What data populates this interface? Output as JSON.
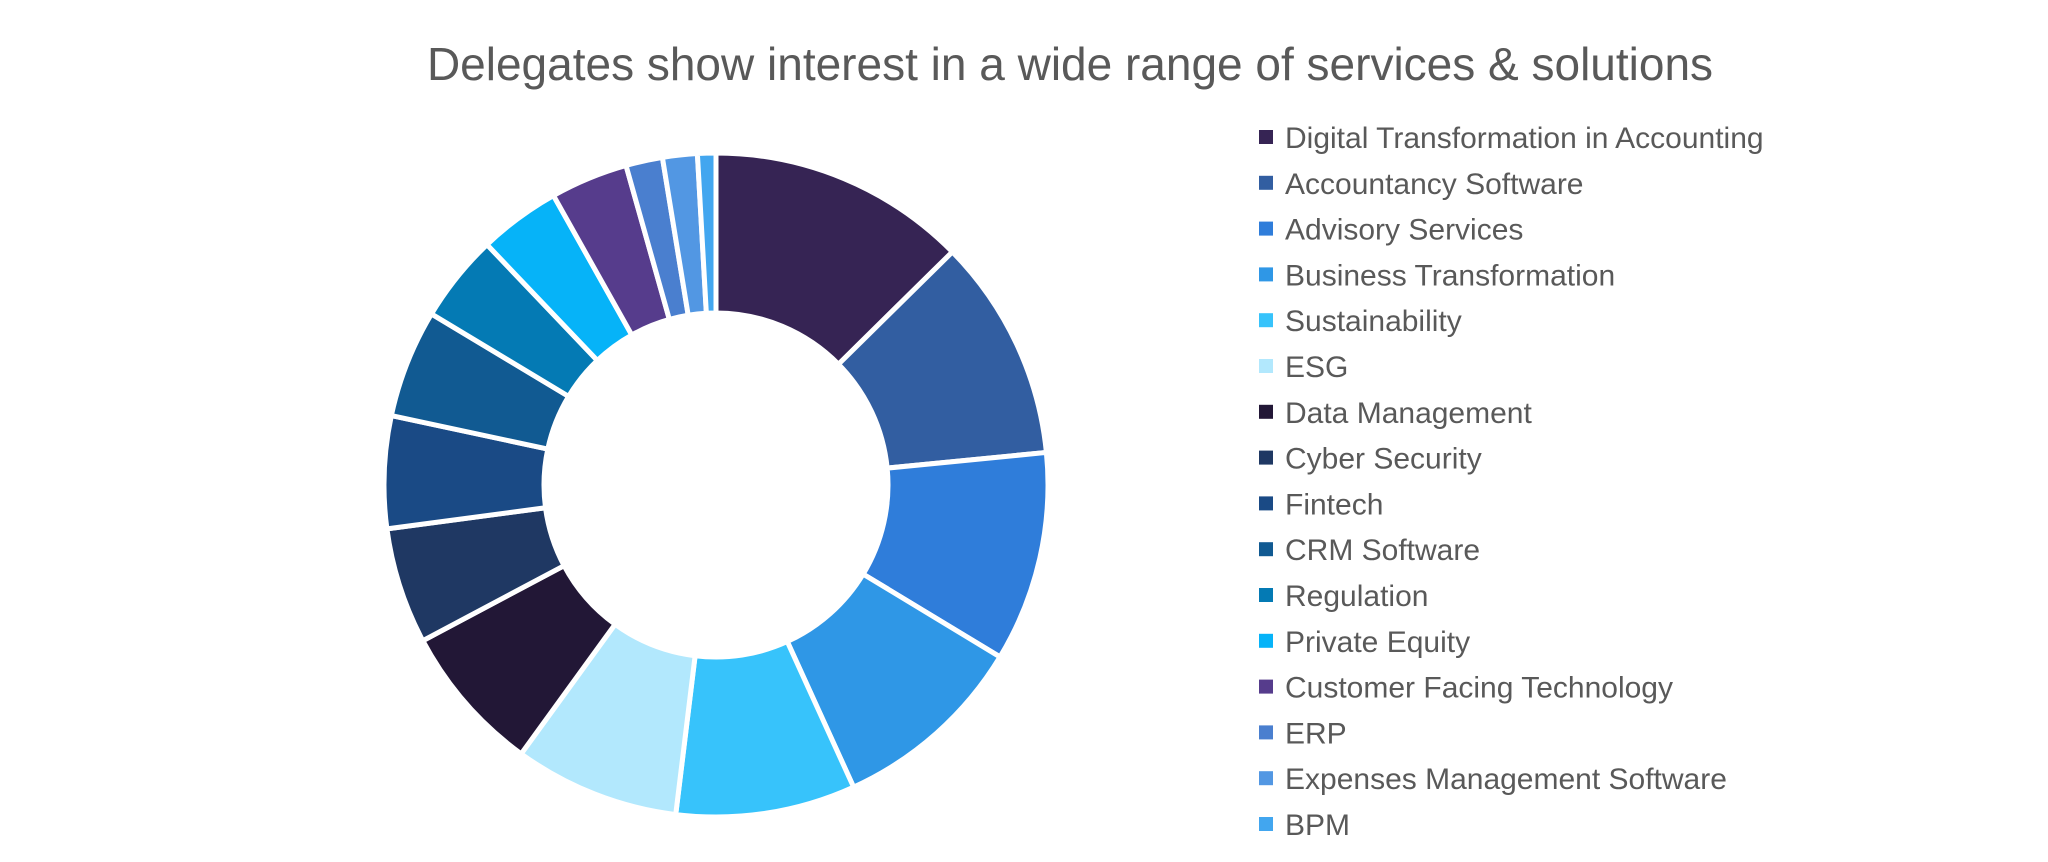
{
  "chart_data": {
    "type": "pie",
    "variant": "doughnut",
    "title": "Delegates show interest in a wide range of services & solutions",
    "legend_position": "right",
    "categories": [
      "Digital Transformation in Accounting",
      "Accountancy Software",
      "Advisory Services",
      "Business Transformation",
      "Sustainability",
      "ESG",
      "Data Management",
      "Cyber Security",
      "Fintech",
      "CRM Software",
      "Regulation",
      "Private Equity",
      "Customer Facing Technology",
      "ERP",
      "Expenses Management Software",
      "BPM"
    ],
    "values": [
      12.7,
      10.9,
      10.3,
      9.6,
      8.8,
      8.1,
      7.3,
      5.7,
      5.5,
      5.3,
      4.3,
      4.0,
      3.8,
      1.8,
      1.7,
      0.9
    ],
    "colors": [
      "#362454",
      "#325EA1",
      "#2F7DDA",
      "#2F97E6",
      "#37C3FB",
      "#B2E8FD",
      "#221736",
      "#1F3863",
      "#1A4A85",
      "#115A92",
      "#047AB4",
      "#06B3F8",
      "#563C8C",
      "#4A7FCF",
      "#5297E3",
      "#42A6EF"
    ]
  }
}
